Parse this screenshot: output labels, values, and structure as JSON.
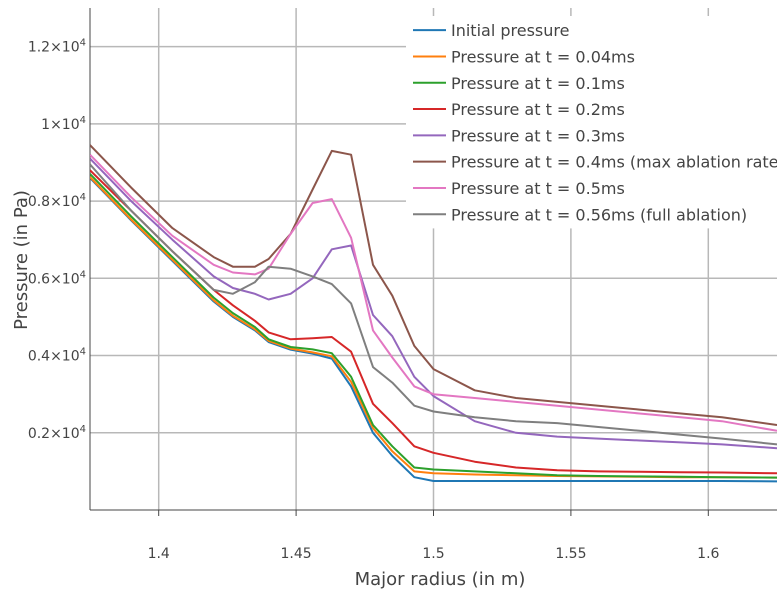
{
  "chart_data": {
    "type": "line",
    "title": "",
    "xlabel": "Major radius (in m)",
    "ylabel": "Pressure (in Pa)",
    "xlim": [
      1.375,
      1.625
    ],
    "ylim": [
      0,
      13000
    ],
    "x_ticks": [
      1.4,
      1.45,
      1.5,
      1.55,
      1.6
    ],
    "x_tick_labels": [
      "1.4",
      "1.45",
      "1.5",
      "1.55",
      "1.6"
    ],
    "y_ticks": [
      2000,
      4000,
      6000,
      8000,
      10000,
      12000
    ],
    "y_tick_labels": [
      {
        "mantissa": "0.2×10",
        "exp": "4"
      },
      {
        "mantissa": "0.4×10",
        "exp": "4"
      },
      {
        "mantissa": "0.6×10",
        "exp": "4"
      },
      {
        "mantissa": "0.8×10",
        "exp": "4"
      },
      {
        "mantissa": "1×10",
        "exp": "4"
      },
      {
        "mantissa": "1.2×10",
        "exp": "4"
      }
    ],
    "grid": true,
    "legend_position": "top-right",
    "x": [
      1.375,
      1.39,
      1.405,
      1.42,
      1.427,
      1.435,
      1.44,
      1.448,
      1.456,
      1.463,
      1.47,
      1.478,
      1.485,
      1.493,
      1.5,
      1.515,
      1.53,
      1.545,
      1.56,
      1.575,
      1.59,
      1.605,
      1.625
    ],
    "series": [
      {
        "name": "Initial pressure",
        "color": "#1f77b4",
        "values": [
          8600,
          7500,
          6450,
          5400,
          5000,
          4650,
          4350,
          4150,
          4050,
          3920,
          3200,
          2000,
          1400,
          850,
          750,
          750,
          750,
          750,
          750,
          750,
          750,
          750,
          740
        ]
      },
      {
        "name": "Pressure at t = 0.04ms",
        "color": "#ff7f0e",
        "values": [
          8620,
          7520,
          6480,
          5430,
          5030,
          4680,
          4380,
          4180,
          4080,
          3980,
          3320,
          2120,
          1520,
          1000,
          950,
          920,
          900,
          880,
          870,
          860,
          850,
          850,
          840
        ]
      },
      {
        "name": "Pressure at t = 0.1ms",
        "color": "#2ca02c",
        "values": [
          8700,
          7600,
          6550,
          5500,
          5100,
          4740,
          4420,
          4220,
          4160,
          4060,
          3450,
          2200,
          1650,
          1100,
          1050,
          1000,
          950,
          900,
          880,
          870,
          860,
          850,
          840
        ]
      },
      {
        "name": "Pressure at t = 0.2ms",
        "color": "#d62728",
        "values": [
          8800,
          7750,
          6700,
          5700,
          5300,
          4900,
          4600,
          4420,
          4450,
          4480,
          4100,
          2750,
          2250,
          1650,
          1480,
          1250,
          1100,
          1030,
          1000,
          990,
          980,
          970,
          950
        ]
      },
      {
        "name": "Pressure at t = 0.3ms",
        "color": "#9467bd",
        "values": [
          9100,
          8000,
          7000,
          6050,
          5750,
          5600,
          5450,
          5600,
          6000,
          6750,
          6850,
          5050,
          4500,
          3450,
          2950,
          2300,
          2000,
          1900,
          1850,
          1800,
          1750,
          1700,
          1600
        ]
      },
      {
        "name": "Pressure at t = 0.4ms (max ablation rate)",
        "color": "#8c564b",
        "values": [
          9450,
          8350,
          7300,
          6550,
          6300,
          6300,
          6500,
          7150,
          8300,
          9300,
          9200,
          6350,
          5550,
          4250,
          3650,
          3100,
          2900,
          2800,
          2700,
          2600,
          2500,
          2400,
          2200
        ]
      },
      {
        "name": "Pressure at t = 0.5ms",
        "color": "#e377c2",
        "values": [
          9200,
          8100,
          7100,
          6350,
          6150,
          6100,
          6250,
          7150,
          7950,
          8050,
          7050,
          4650,
          3950,
          3200,
          3000,
          2900,
          2800,
          2700,
          2600,
          2500,
          2400,
          2300,
          2050
        ]
      },
      {
        "name": "Pressure at t = 0.56ms (full ablation)",
        "color": "#7f7f7f",
        "values": [
          8950,
          7750,
          6700,
          5700,
          5600,
          5900,
          6300,
          6250,
          6050,
          5850,
          5350,
          3700,
          3300,
          2700,
          2550,
          2400,
          2300,
          2250,
          2150,
          2050,
          1950,
          1850,
          1700
        ]
      }
    ]
  }
}
